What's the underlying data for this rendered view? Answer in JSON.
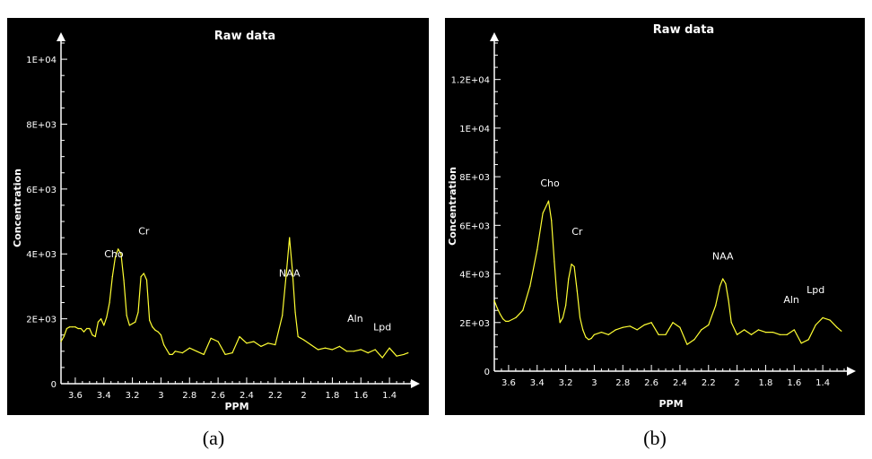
{
  "captions": [
    "(a)",
    "(b)"
  ],
  "colors": {
    "background": "#000000",
    "axis": "#ffffff",
    "text": "#ffffff",
    "series": "#ffff33"
  },
  "chart_data": [
    {
      "type": "line",
      "title": "Raw data",
      "xlabel": "PPM",
      "ylabel": "Concentration",
      "xlim": [
        3.7,
        1.25
      ],
      "ylim": [
        0,
        10500
      ],
      "x_reversed": true,
      "grid": false,
      "xticks": [
        3.6,
        3.4,
        3.2,
        3.0,
        2.8,
        2.6,
        2.4,
        2.2,
        2.0,
        1.8,
        1.6,
        1.4
      ],
      "xtick_labels": [
        "3.6",
        "3.4",
        "3.2",
        "3",
        "2.8",
        "2.6",
        "2.4",
        "2.2",
        "2",
        "1.8",
        "1.6",
        "1.4"
      ],
      "yticks": [
        0,
        2000,
        4000,
        6000,
        8000,
        10000
      ],
      "ytick_labels": [
        "0",
        "2E+03",
        "4E+03",
        "6E+03",
        "8E+03",
        "1E+04"
      ],
      "annotations": [
        {
          "text": "Cho",
          "x": 3.33,
          "y": 3900
        },
        {
          "text": "Cr",
          "x": 3.12,
          "y": 4600
        },
        {
          "text": "NAA",
          "x": 2.1,
          "y": 3300
        },
        {
          "text": "Aln",
          "x": 1.64,
          "y": 1900
        },
        {
          "text": "Lpd",
          "x": 1.45,
          "y": 1650
        }
      ],
      "series": [
        {
          "x": [
            3.7,
            3.68,
            3.66,
            3.64,
            3.62,
            3.6,
            3.58,
            3.56,
            3.54,
            3.52,
            3.5,
            3.48,
            3.46,
            3.44,
            3.42,
            3.4,
            3.38,
            3.36,
            3.34,
            3.32,
            3.3,
            3.28,
            3.26,
            3.24,
            3.22,
            3.2,
            3.18,
            3.16,
            3.14,
            3.12,
            3.1,
            3.08,
            3.06,
            3.04,
            3.02,
            3.0,
            2.98,
            2.96,
            2.94,
            2.92,
            2.9,
            2.85,
            2.8,
            2.75,
            2.7,
            2.65,
            2.6,
            2.55,
            2.5,
            2.45,
            2.4,
            2.35,
            2.3,
            2.25,
            2.2,
            2.15,
            2.12,
            2.1,
            2.08,
            2.06,
            2.04,
            2.02,
            2.0,
            1.95,
            1.9,
            1.85,
            1.8,
            1.75,
            1.7,
            1.65,
            1.6,
            1.55,
            1.5,
            1.45,
            1.4,
            1.35,
            1.3,
            1.27
          ],
          "y": [
            1300,
            1450,
            1700,
            1750,
            1750,
            1750,
            1700,
            1700,
            1600,
            1700,
            1700,
            1500,
            1450,
            1900,
            2000,
            1800,
            2050,
            2500,
            3300,
            3900,
            4150,
            4000,
            3200,
            2100,
            1800,
            1850,
            1900,
            2200,
            3300,
            3400,
            3200,
            1950,
            1750,
            1650,
            1600,
            1500,
            1200,
            1050,
            900,
            900,
            1000,
            950,
            1100,
            1000,
            900,
            1400,
            1300,
            900,
            950,
            1450,
            1250,
            1300,
            1150,
            1250,
            1200,
            2100,
            3500,
            4500,
            3500,
            2200,
            1450,
            1400,
            1350,
            1200,
            1050,
            1100,
            1050,
            1150,
            1000,
            1000,
            1050,
            950,
            1050,
            800,
            1100,
            850,
            900,
            950
          ]
        }
      ]
    },
    {
      "type": "line",
      "title": "Raw data",
      "xlabel": "PPM",
      "ylabel": "Concentration",
      "xlim": [
        3.7,
        1.25
      ],
      "ylim": [
        0,
        13500
      ],
      "x_reversed": true,
      "grid": false,
      "xticks": [
        3.6,
        3.4,
        3.2,
        3.0,
        2.8,
        2.6,
        2.4,
        2.2,
        2.0,
        1.8,
        1.6,
        1.4
      ],
      "xtick_labels": [
        "3.6",
        "3.4",
        "3.2",
        "3",
        "2.8",
        "2.6",
        "2.4",
        "2.2",
        "2",
        "1.8",
        "1.6",
        "1.4"
      ],
      "yticks": [
        0,
        2000,
        4000,
        6000,
        8000,
        10000,
        12000
      ],
      "ytick_labels": [
        "0",
        "2E+03",
        "4E+03",
        "6E+03",
        "8E+03",
        "1E+04",
        "1.2E+04"
      ],
      "annotations": [
        {
          "text": "Cho",
          "x": 3.31,
          "y": 7600
        },
        {
          "text": "Cr",
          "x": 3.12,
          "y": 5600
        },
        {
          "text": "NAA",
          "x": 2.1,
          "y": 4600
        },
        {
          "text": "Aln",
          "x": 1.62,
          "y": 2800
        },
        {
          "text": "Lpd",
          "x": 1.45,
          "y": 3200
        }
      ],
      "series": [
        {
          "x": [
            3.7,
            3.68,
            3.66,
            3.64,
            3.62,
            3.6,
            3.55,
            3.5,
            3.45,
            3.4,
            3.36,
            3.32,
            3.3,
            3.28,
            3.26,
            3.24,
            3.22,
            3.2,
            3.18,
            3.16,
            3.14,
            3.12,
            3.1,
            3.08,
            3.06,
            3.04,
            3.02,
            3.0,
            2.95,
            2.9,
            2.85,
            2.8,
            2.75,
            2.7,
            2.65,
            2.6,
            2.55,
            2.5,
            2.45,
            2.4,
            2.35,
            2.3,
            2.25,
            2.2,
            2.15,
            2.12,
            2.1,
            2.08,
            2.06,
            2.04,
            2.0,
            1.95,
            1.9,
            1.85,
            1.8,
            1.75,
            1.7,
            1.65,
            1.6,
            1.55,
            1.5,
            1.45,
            1.4,
            1.35,
            1.3,
            1.27
          ],
          "y": [
            2900,
            2600,
            2350,
            2150,
            2050,
            2050,
            2200,
            2500,
            3500,
            5000,
            6500,
            7000,
            6200,
            4500,
            3000,
            2000,
            2200,
            2700,
            3800,
            4400,
            4300,
            3300,
            2200,
            1700,
            1400,
            1300,
            1350,
            1500,
            1600,
            1500,
            1700,
            1800,
            1850,
            1700,
            1900,
            2000,
            1500,
            1500,
            2000,
            1800,
            1100,
            1300,
            1700,
            1900,
            2700,
            3500,
            3800,
            3600,
            2900,
            2000,
            1500,
            1700,
            1500,
            1700,
            1600,
            1600,
            1500,
            1500,
            1700,
            1150,
            1300,
            1900,
            2200,
            2100,
            1800,
            1650
          ]
        }
      ]
    }
  ]
}
